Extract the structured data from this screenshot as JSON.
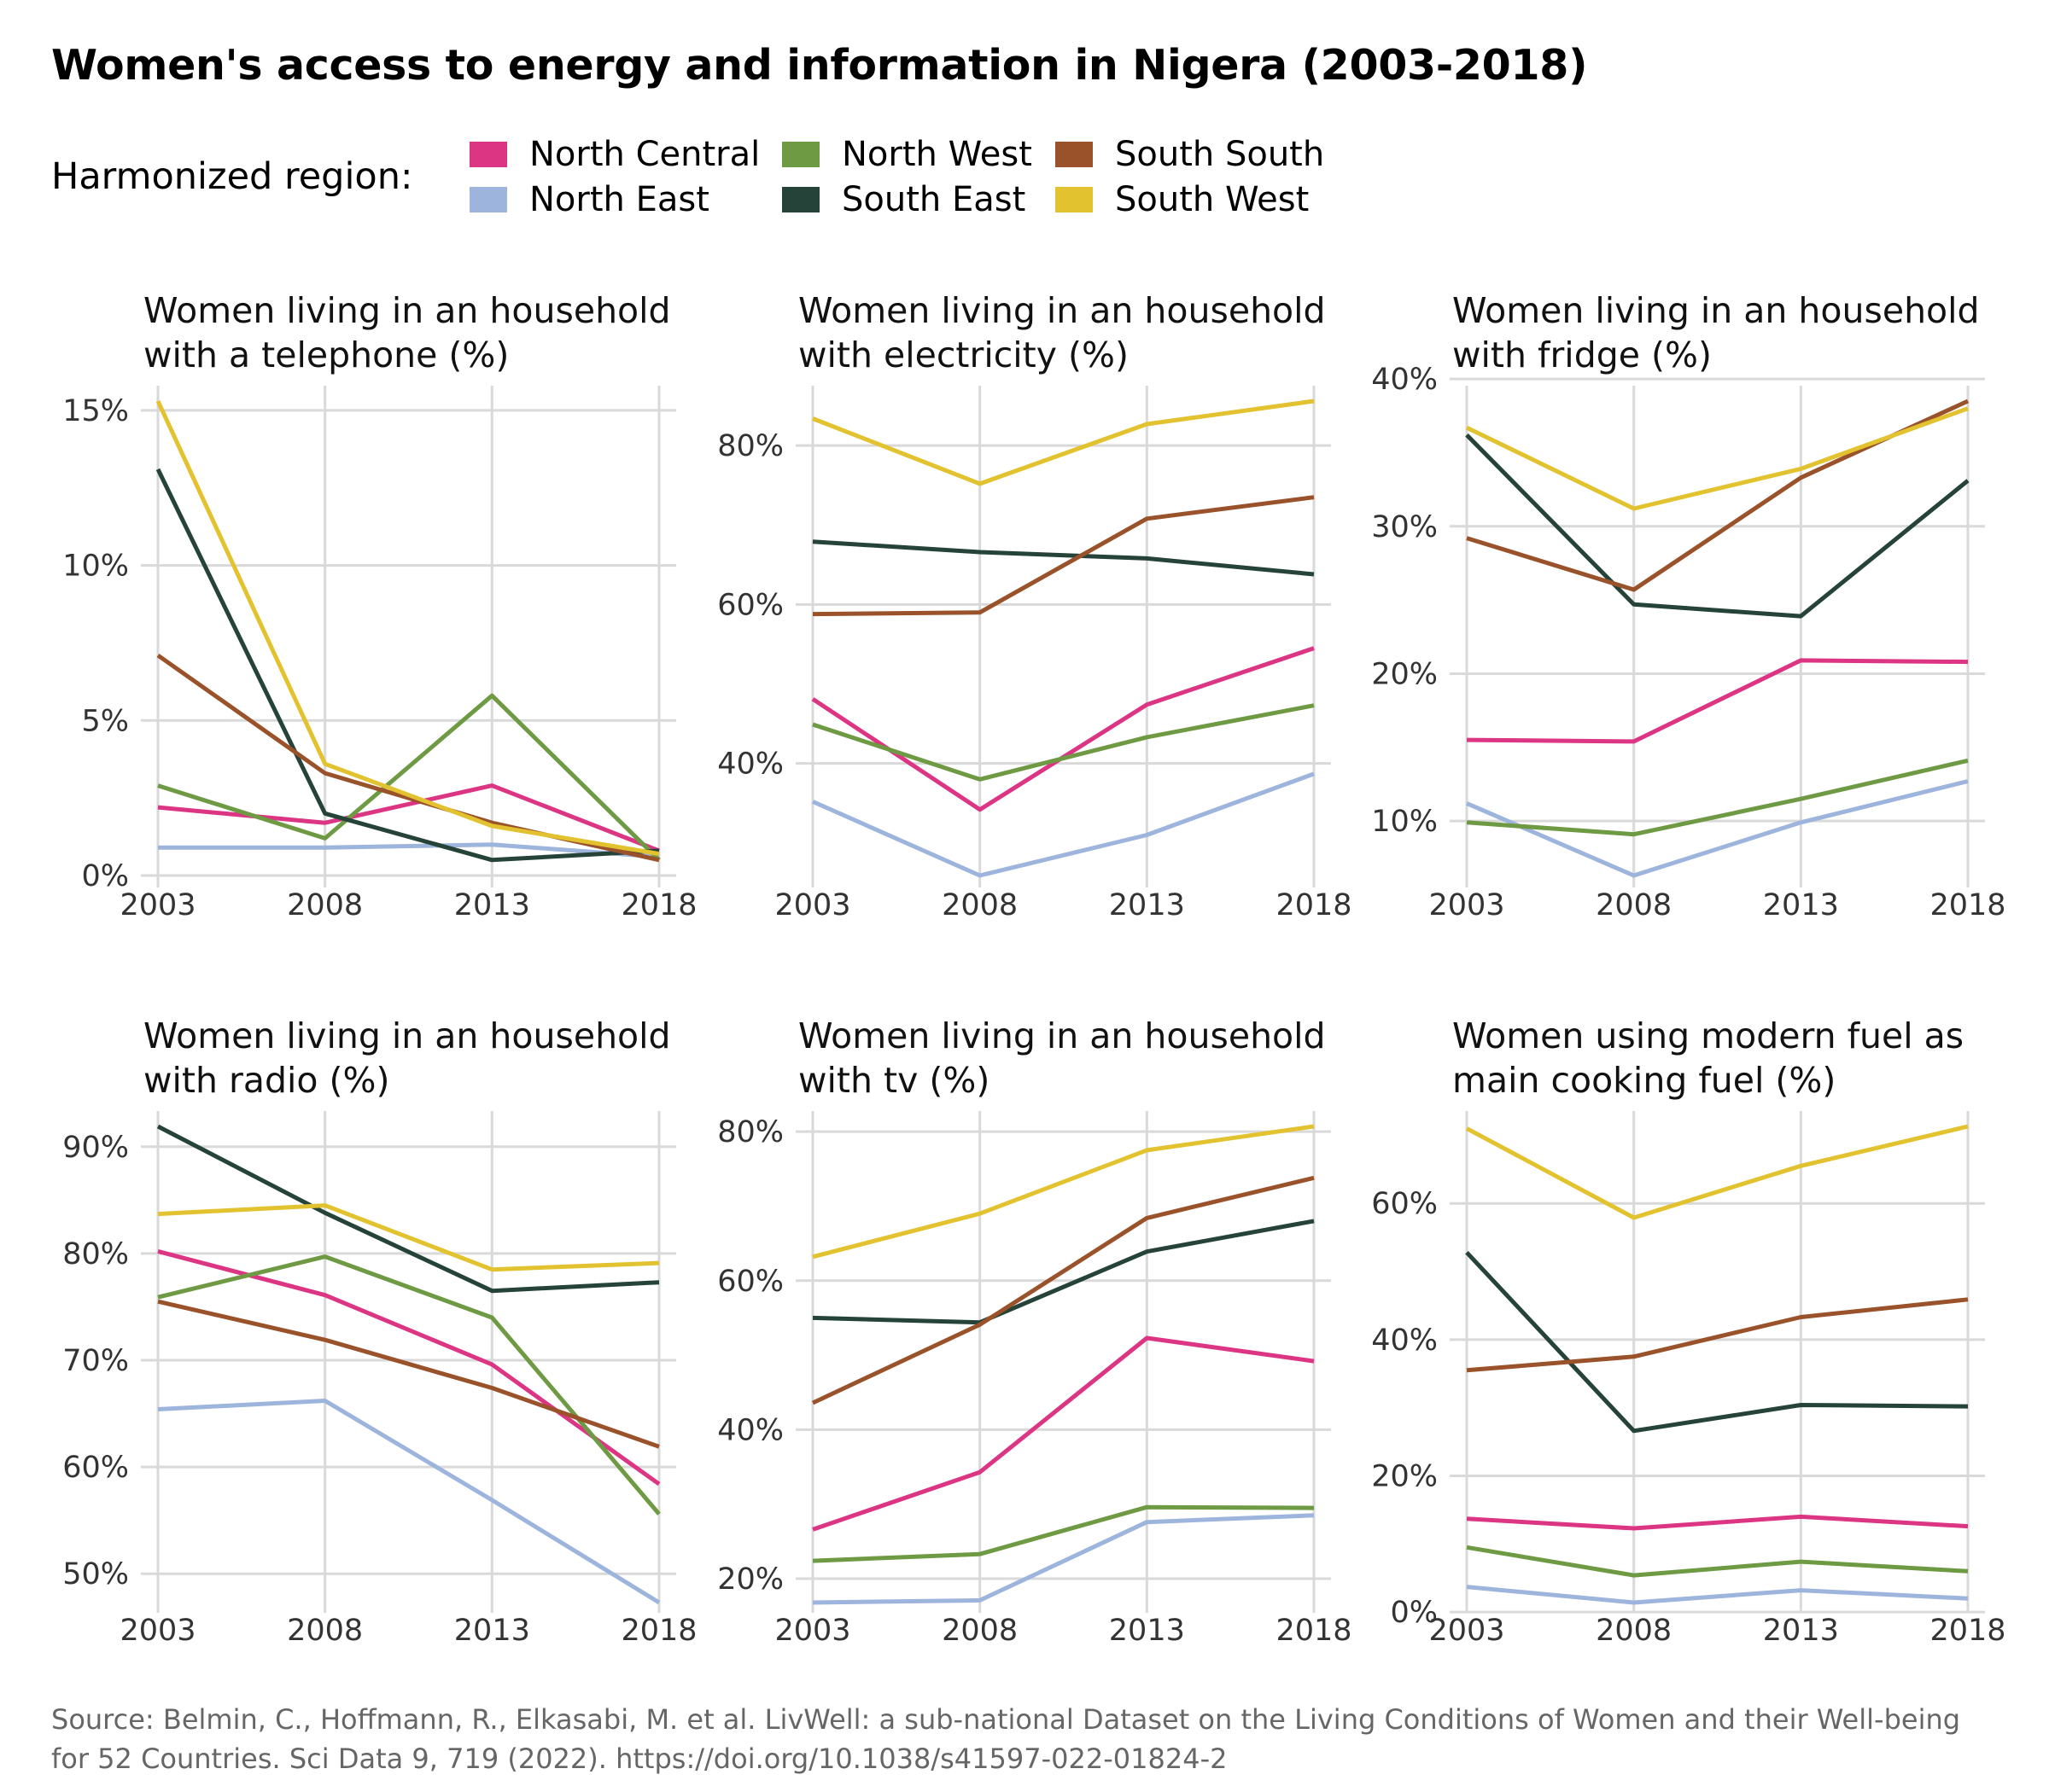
{
  "title": "Women's access to energy and information in Nigera (2003-2018)",
  "legend": {
    "title": "Harmonized region:",
    "items": [
      {
        "label": "North Central",
        "color": "#DC3584"
      },
      {
        "label": "North East",
        "color": "#9DB4DC"
      },
      {
        "label": "North West",
        "color": "#6F9A44"
      },
      {
        "label": "South East",
        "color": "#26433A"
      },
      {
        "label": "South South",
        "color": "#9A522A"
      },
      {
        "label": "South West",
        "color": "#E2C22E"
      }
    ]
  },
  "caption": {
    "line1": "Source: Belmin, C., Hoffmann, R., Elkasabi, M. et al. LivWell: a sub-national Dataset on the Living Conditions of Women and their Well-being",
    "line2": "for 52 Countries. Sci Data 9, 719 (2022). https://doi.org/10.1038/s41597-022-01824-2"
  },
  "chart_data": [
    {
      "type": "line",
      "title": [
        "Women living in an household",
        "with a telephone (%)"
      ],
      "x": [
        2003,
        2008,
        2013,
        2018
      ],
      "ylim": [
        0,
        15.3
      ],
      "yticks": [
        0,
        5,
        10,
        15
      ],
      "ytick_labels": [
        "0%",
        "5%",
        "10%",
        "15%"
      ],
      "xtick_labels": [
        "2003",
        "2008",
        "2013",
        "2018"
      ],
      "series": [
        {
          "name": "North Central",
          "values": [
            2.2,
            1.7,
            2.9,
            0.8
          ]
        },
        {
          "name": "North East",
          "values": [
            0.9,
            0.9,
            1.0,
            0.6
          ]
        },
        {
          "name": "North West",
          "values": [
            2.9,
            1.2,
            5.8,
            0.5
          ]
        },
        {
          "name": "South East",
          "values": [
            13.1,
            2.0,
            0.5,
            0.8
          ]
        },
        {
          "name": "South South",
          "values": [
            7.1,
            3.3,
            1.7,
            0.5
          ]
        },
        {
          "name": "South West",
          "values": [
            15.3,
            3.6,
            1.6,
            0.7
          ]
        }
      ]
    },
    {
      "type": "line",
      "title": [
        "Women living in an household",
        "with electricity (%)"
      ],
      "x": [
        2003,
        2008,
        2013,
        2018
      ],
      "ylim": [
        25.9,
        85.6
      ],
      "yticks": [
        40,
        60,
        80
      ],
      "ytick_labels": [
        "40%",
        "60%",
        "80%"
      ],
      "xtick_labels": [
        "2003",
        "2008",
        "2013",
        "2018"
      ],
      "series": [
        {
          "name": "North Central",
          "values": [
            48.1,
            34.2,
            47.4,
            54.5
          ]
        },
        {
          "name": "North East",
          "values": [
            35.2,
            25.9,
            31.0,
            38.7
          ]
        },
        {
          "name": "North West",
          "values": [
            44.9,
            38.0,
            43.3,
            47.3
          ]
        },
        {
          "name": "South East",
          "values": [
            67.9,
            66.6,
            65.8,
            63.8
          ]
        },
        {
          "name": "South South",
          "values": [
            58.8,
            59.0,
            70.8,
            73.5
          ]
        },
        {
          "name": "South West",
          "values": [
            83.4,
            75.2,
            82.7,
            85.6
          ]
        }
      ]
    },
    {
      "type": "line",
      "title": [
        "Women living in an household",
        "with fridge (%)"
      ],
      "x": [
        2003,
        2008,
        2013,
        2018
      ],
      "ylim": [
        6.3,
        38.5
      ],
      "yticks": [
        10,
        20,
        30,
        40
      ],
      "ytick_labels": [
        "10%",
        "20%",
        "30%",
        "40%"
      ],
      "xtick_labels": [
        "2003",
        "2008",
        "2013",
        "2018"
      ],
      "series": [
        {
          "name": "North Central",
          "values": [
            15.5,
            15.4,
            20.9,
            20.8
          ]
        },
        {
          "name": "North East",
          "values": [
            11.2,
            6.3,
            9.9,
            12.7
          ]
        },
        {
          "name": "North West",
          "values": [
            9.9,
            9.1,
            11.5,
            14.1
          ]
        },
        {
          "name": "South East",
          "values": [
            36.2,
            24.7,
            23.9,
            33.1
          ]
        },
        {
          "name": "South South",
          "values": [
            29.2,
            25.7,
            33.3,
            38.5
          ]
        },
        {
          "name": "South West",
          "values": [
            36.7,
            31.2,
            33.9,
            38.0
          ]
        }
      ]
    },
    {
      "type": "line",
      "title": [
        "Women living in an household",
        "with radio (%)"
      ],
      "x": [
        2003,
        2008,
        2013,
        2018
      ],
      "ylim": [
        47.3,
        91.9
      ],
      "yticks": [
        50,
        60,
        70,
        80,
        90
      ],
      "ytick_labels": [
        "50%",
        "60%",
        "70%",
        "80%",
        "90%"
      ],
      "xtick_labels": [
        "2003",
        "2008",
        "2013",
        "2018"
      ],
      "series": [
        {
          "name": "North Central",
          "values": [
            80.2,
            76.1,
            69.6,
            58.4
          ]
        },
        {
          "name": "North East",
          "values": [
            65.4,
            66.2,
            56.9,
            47.3
          ]
        },
        {
          "name": "North West",
          "values": [
            75.9,
            79.7,
            74.0,
            55.6
          ]
        },
        {
          "name": "South East",
          "values": [
            91.9,
            83.8,
            76.5,
            77.3
          ]
        },
        {
          "name": "South South",
          "values": [
            75.5,
            71.9,
            67.4,
            61.9
          ]
        },
        {
          "name": "South West",
          "values": [
            83.7,
            84.5,
            78.5,
            79.1
          ]
        }
      ]
    },
    {
      "type": "line",
      "title": [
        "Women living in an household",
        "with tv (%)"
      ],
      "x": [
        2003,
        2008,
        2013,
        2018
      ],
      "ylim": [
        16.8,
        80.7
      ],
      "yticks": [
        20,
        40,
        60,
        80
      ],
      "ytick_labels": [
        "20%",
        "40%",
        "60%",
        "80%"
      ],
      "xtick_labels": [
        "2003",
        "2008",
        "2013",
        "2018"
      ],
      "series": [
        {
          "name": "North Central",
          "values": [
            26.6,
            34.3,
            52.3,
            49.2
          ]
        },
        {
          "name": "North East",
          "values": [
            16.8,
            17.1,
            27.6,
            28.5
          ]
        },
        {
          "name": "North West",
          "values": [
            22.4,
            23.3,
            29.6,
            29.5
          ]
        },
        {
          "name": "South East",
          "values": [
            55.0,
            54.4,
            63.9,
            68.0
          ]
        },
        {
          "name": "South South",
          "values": [
            43.6,
            54.1,
            68.4,
            73.8
          ]
        },
        {
          "name": "South West",
          "values": [
            63.2,
            69.0,
            77.5,
            80.7
          ]
        }
      ]
    },
    {
      "type": "line",
      "title": [
        "Women using modern fuel as",
        "main cooking fuel (%)"
      ],
      "x": [
        2003,
        2008,
        2013,
        2018
      ],
      "ylim": [
        1.4,
        71.3
      ],
      "yticks": [
        0,
        20,
        40,
        60
      ],
      "ytick_labels": [
        "0%",
        "20%",
        "40%",
        "60%"
      ],
      "xtick_labels": [
        "2003",
        "2008",
        "2013",
        "2018"
      ],
      "series": [
        {
          "name": "North Central",
          "values": [
            13.7,
            12.3,
            14.0,
            12.6
          ]
        },
        {
          "name": "North East",
          "values": [
            3.7,
            1.4,
            3.2,
            2.0
          ]
        },
        {
          "name": "North West",
          "values": [
            9.5,
            5.4,
            7.4,
            6.0
          ]
        },
        {
          "name": "South East",
          "values": [
            52.8,
            26.6,
            30.4,
            30.2
          ]
        },
        {
          "name": "South South",
          "values": [
            35.5,
            37.5,
            43.3,
            45.9
          ]
        },
        {
          "name": "South West",
          "values": [
            71.0,
            57.9,
            65.5,
            71.3
          ]
        }
      ]
    }
  ]
}
